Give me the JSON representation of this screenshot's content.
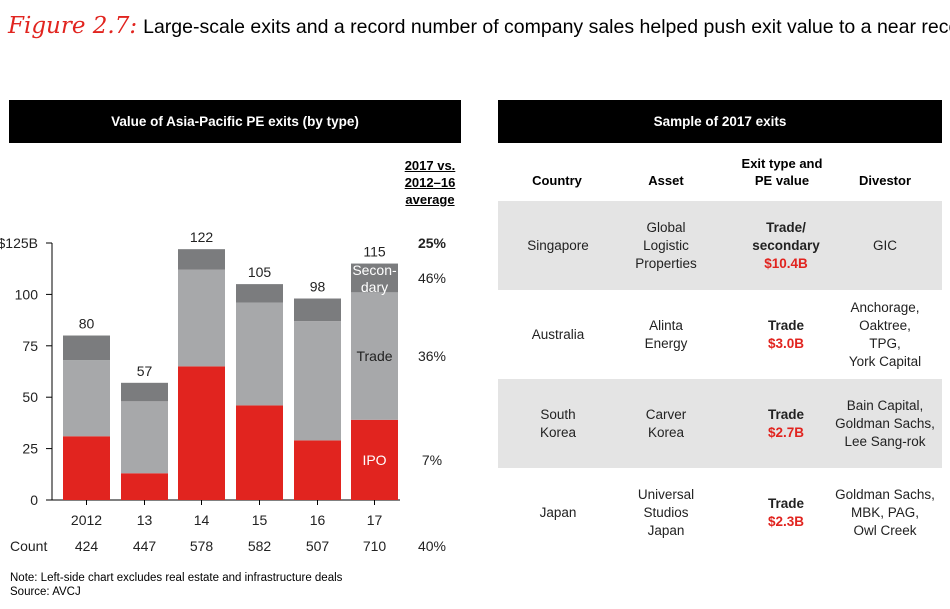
{
  "figure": {
    "label": "Figure 2.7:",
    "title": "Large-scale exits and a record number of company sales helped push exit value to a near record"
  },
  "left_panel": {
    "header": "Value of Asia-Pacific PE exits (by type)",
    "comparison_header": [
      "2017 vs.",
      "2012–16",
      "average"
    ],
    "count_label": "Count",
    "note": "Note: Left-side chart excludes real estate and infrastructure deals",
    "source": "Source: AVCJ"
  },
  "chart_data": {
    "type": "bar",
    "stacked": true,
    "categories": [
      "2012",
      "13",
      "14",
      "15",
      "16",
      "17"
    ],
    "series": [
      {
        "name": "IPO",
        "values": [
          31,
          13,
          65,
          46,
          29,
          39
        ],
        "color": "#e1241f"
      },
      {
        "name": "Trade",
        "values": [
          37,
          35,
          47,
          50,
          58,
          62
        ],
        "color": "#a7a8aa"
      },
      {
        "name": "Secondary",
        "values": [
          12,
          9,
          10,
          9,
          11,
          14
        ],
        "color": "#7b7c7e"
      }
    ],
    "series_labels_in_bar": [
      "IPO",
      "Trade",
      [
        "Secon-",
        "dary"
      ]
    ],
    "totals": [
      "80",
      "57",
      "122",
      "105",
      "98",
      "115"
    ],
    "counts": [
      "424",
      "447",
      "578",
      "582",
      "507",
      "710"
    ],
    "yticks": [
      "$125B",
      "100",
      "75",
      "50",
      "25",
      "0"
    ],
    "ytick_values": [
      125,
      100,
      75,
      50,
      25,
      0
    ],
    "ylim": [
      0,
      125
    ],
    "comparison": {
      "total": "25%",
      "secondary": "46%",
      "trade": "36%",
      "ipo": "7%",
      "count": "40%"
    }
  },
  "right_panel": {
    "header": "Sample of 2017 exits",
    "columns": [
      "Country",
      "Asset",
      [
        "Exit type and",
        "PE value"
      ],
      "Divestor"
    ],
    "rows": [
      {
        "country": [
          "Singapore"
        ],
        "asset": [
          "Global",
          "Logistic",
          "Properties"
        ],
        "exit_type": [
          "Trade/",
          "secondary"
        ],
        "value": "$10.4B",
        "divestor": [
          "GIC"
        ]
      },
      {
        "country": [
          "Australia"
        ],
        "asset": [
          "Alinta",
          "Energy"
        ],
        "exit_type": [
          "Trade"
        ],
        "value": "$3.0B",
        "divestor": [
          "Anchorage,",
          "Oaktree,",
          "TPG,",
          "York Capital"
        ]
      },
      {
        "country": [
          "South",
          "Korea"
        ],
        "asset": [
          "Carver",
          "Korea"
        ],
        "exit_type": [
          "Trade"
        ],
        "value": "$2.7B",
        "divestor": [
          "Bain Capital,",
          "Goldman Sachs,",
          "Lee Sang-rok"
        ]
      },
      {
        "country": [
          "Japan"
        ],
        "asset": [
          "Universal",
          "Studios",
          "Japan"
        ],
        "exit_type": [
          "Trade"
        ],
        "value": "$2.3B",
        "divestor": [
          "Goldman Sachs,",
          "MBK, PAG,",
          "Owl Creek"
        ]
      }
    ]
  }
}
